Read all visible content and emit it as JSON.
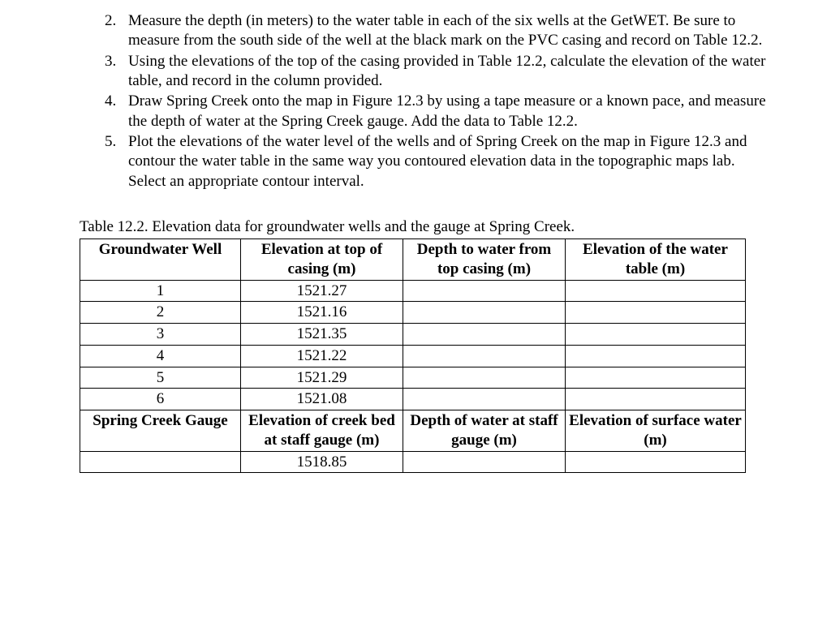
{
  "instructions": {
    "start": 2,
    "items": [
      "Measure the depth (in meters) to the water table in each of the six wells at the GetWET.  Be sure to measure from the south side of the well at the black mark on the PVC casing and record on Table 12.2.",
      "Using the elevations of the top of the casing provided in Table 12.2, calculate the elevation of the water table, and record in the column provided.",
      "Draw Spring Creek onto the map in Figure 12.3 by using a tape measure or a known pace, and measure the depth of water at the Spring Creek gauge.  Add the data to Table 12.2.",
      "Plot the elevations of the water level of the wells and of Spring Creek on the map in Figure 12.3 and contour the water table in the same way you contoured elevation data in the topographic maps lab.  Select an appropriate contour interval."
    ]
  },
  "table": {
    "caption": "Table 12.2.  Elevation data for groundwater wells and the gauge at Spring Creek.",
    "header1": {
      "c1": "Groundwater Well",
      "c2": "Elevation at top of casing (m)",
      "c3": "Depth to water from top casing (m)",
      "c4": "Elevation of the water table (m)"
    },
    "wells": [
      {
        "id": "1",
        "elev": "1521.27",
        "depth": "",
        "wt": ""
      },
      {
        "id": "2",
        "elev": "1521.16",
        "depth": "",
        "wt": ""
      },
      {
        "id": "3",
        "elev": "1521.35",
        "depth": "",
        "wt": ""
      },
      {
        "id": "4",
        "elev": "1521.22",
        "depth": "",
        "wt": ""
      },
      {
        "id": "5",
        "elev": "1521.29",
        "depth": "",
        "wt": ""
      },
      {
        "id": "6",
        "elev": "1521.08",
        "depth": "",
        "wt": ""
      }
    ],
    "header2": {
      "c1": "Spring Creek Gauge",
      "c2": "Elevation of creek bed at staff gauge (m)",
      "c3": "Depth of water at staff gauge (m)",
      "c4": "Elevation of surface water (m)"
    },
    "gauge": {
      "elev": "1518.85",
      "depth": "",
      "sw": ""
    }
  }
}
